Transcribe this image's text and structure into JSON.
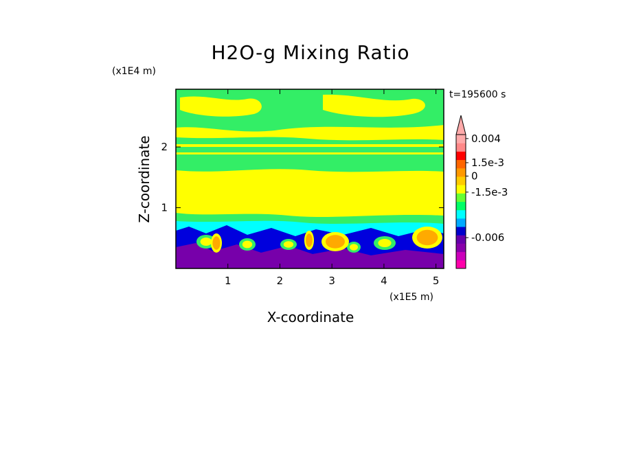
{
  "chart_data": {
    "type": "heatmap",
    "title": "H2O-g Mixing Ratio",
    "xlabel": "X-coordinate",
    "ylabel": "Z-coordinate",
    "x_multiplier": "(x1E5 m)",
    "y_multiplier": "(x1E4 m)",
    "time_label": "t=195600 s",
    "xlim": [
      0,
      5.15
    ],
    "ylim": [
      0,
      2.95
    ],
    "x_ticks": [
      "1",
      "2",
      "3",
      "4",
      "5"
    ],
    "y_ticks": [
      "1",
      "2"
    ],
    "colorbar": {
      "colors": [
        "#ff00aa",
        "#cc00bb",
        "#8800aa",
        "#6600aa",
        "#0000cc",
        "#00aaff",
        "#00ffff",
        "#00ff66",
        "#66ff33",
        "#ffff00",
        "#ffcc00",
        "#ff9900",
        "#ff6600",
        "#ff0000",
        "#ff8888",
        "#ffaaaa"
      ],
      "labels": [
        "0.004",
        "1.5e-3",
        "0",
        "-1.5e-3",
        "-0.006"
      ]
    },
    "palette": {
      "yellow": "#ffff00",
      "green": "#33ee66",
      "cyan": "#00ffff",
      "blue": "#0000dd",
      "purple": "#7700aa",
      "orange": "#ffaa00"
    }
  }
}
